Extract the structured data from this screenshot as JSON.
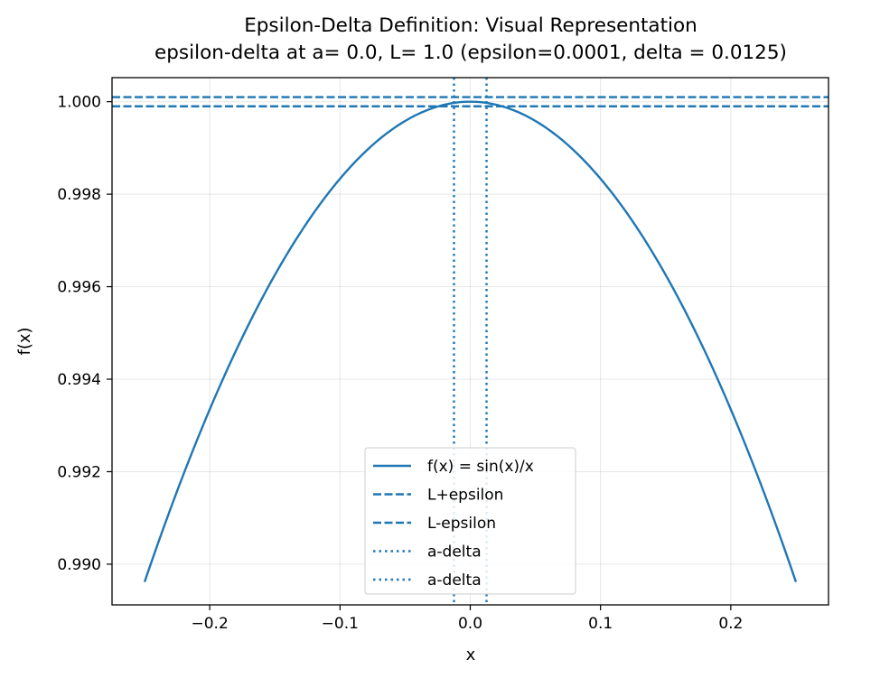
{
  "chart_data": {
    "type": "line",
    "title": "Epsilon-Delta Definition: Visual Representation",
    "subtitle": "epsilon-delta at a= 0.0, L= 1.0 (epsilon=0.0001, delta = 0.0125)",
    "xlabel": "x",
    "ylabel": "f(x)",
    "xlim": [
      -0.275,
      0.275
    ],
    "ylim": [
      0.98912,
      1.00052
    ],
    "x_ticks": [
      -0.2,
      -0.1,
      0.0,
      0.1,
      0.2
    ],
    "x_tick_labels": [
      "−0.2",
      "−0.1",
      "0.0",
      "0.1",
      "0.2"
    ],
    "y_ticks": [
      0.99,
      0.992,
      0.994,
      0.996,
      0.998,
      1.0
    ],
    "y_tick_labels": [
      "0.990",
      "0.992",
      "0.994",
      "0.996",
      "0.998",
      "1.000"
    ],
    "grid": true,
    "legend_position": "lower-center",
    "color": "#1f77b4",
    "series": [
      {
        "name": "f(x) = sin(x)/x",
        "style": "solid",
        "function": "sin(x)/x",
        "x_range": [
          -0.25,
          0.25
        ]
      },
      {
        "name": "L+epsilon",
        "style": "dashed",
        "orientation": "horizontal",
        "value": 1.0001
      },
      {
        "name": "L-epsilon",
        "style": "dashed",
        "orientation": "horizontal",
        "value": 0.9999
      },
      {
        "name": "a-delta",
        "style": "dotted",
        "orientation": "vertical",
        "value": -0.0125
      },
      {
        "name": "a-delta",
        "style": "dotted",
        "orientation": "vertical",
        "value": 0.0125
      }
    ]
  }
}
